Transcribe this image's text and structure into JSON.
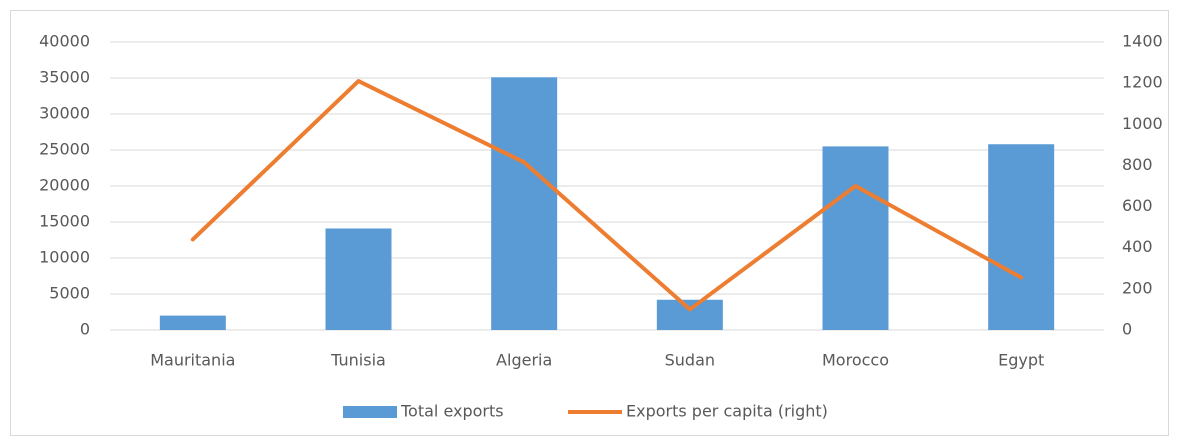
{
  "chart_data": {
    "type": "bar",
    "categories": [
      "Mauritania",
      "Tunisia",
      "Algeria",
      "Sudan",
      "Morocco",
      "Egypt"
    ],
    "series": [
      {
        "name": "Total exports",
        "color": "#5b9bd5",
        "type": "bar",
        "values": [
          2000,
          14100,
          35100,
          4200,
          25500,
          25800
        ]
      },
      {
        "name": "Exports per capita (right)",
        "color": "#ed7d31",
        "type": "line",
        "axis": "y2",
        "values": [
          440,
          1210,
          815,
          100,
          700,
          255
        ]
      }
    ],
    "ylim": [
      0,
      40000
    ],
    "yticks": [
      0,
      5000,
      10000,
      15000,
      20000,
      25000,
      30000,
      35000,
      40000
    ],
    "y2lim": [
      0,
      1400
    ],
    "y2ticks": [
      0,
      200,
      400,
      600,
      800,
      1000,
      1200,
      1400
    ],
    "grid": true,
    "legend": "bottom"
  }
}
